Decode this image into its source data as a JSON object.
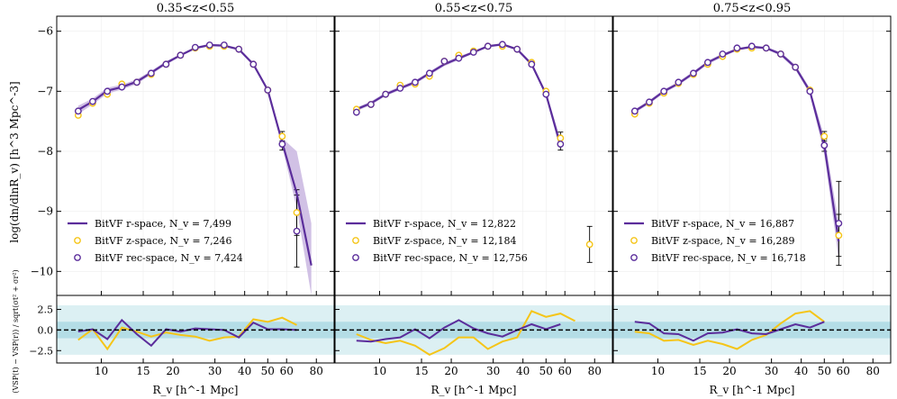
{
  "figure": {
    "ylabel_main": "log(dn/dlnR_v) [h^3 Mpc^-3]",
    "ylabel_resid": "(VSP(t) − VSP(r)) / sqrt(σt² + σr²)",
    "xlabel": "R_v [h^-1 Mpc]"
  },
  "styles": {
    "rspace_color": "#5b2d9b",
    "zspace_color": "#f5c518",
    "band_outer": "#dcf0f3",
    "band_inner": "#b4dde6"
  },
  "chart_data": [
    {
      "type": "line",
      "title": "0.35<z<0.55",
      "xscale": "log",
      "xlim": [
        6.5,
        95
      ],
      "ylim": [
        -10.4,
        -5.75
      ],
      "xticks": [
        10,
        15,
        20,
        30,
        40,
        50,
        60,
        80
      ],
      "yticks": [
        -10,
        -9,
        -8,
        -7,
        -6
      ],
      "legend": [
        "BitVF r-space, N_v = 7,499",
        "BitVF z-space, N_v = 7,246",
        "BitVF rec-space, N_v = 7,424"
      ],
      "x": [
        8.0,
        9.2,
        10.6,
        12.2,
        14.1,
        16.2,
        18.7,
        21.5,
        24.8,
        28.5,
        32.8,
        37.8,
        43.5,
        50.0,
        57.5,
        66.2,
        76.2
      ],
      "rspace": [
        -7.31,
        -7.17,
        -6.99,
        -6.93,
        -6.84,
        -6.69,
        -6.53,
        -6.4,
        -6.28,
        -6.23,
        -6.24,
        -6.3,
        -6.55,
        -6.98,
        -7.85,
        -8.7,
        -9.9
      ],
      "rspace_err_lo": [
        -7.38,
        -7.22,
        -7.04,
        -6.97,
        -6.88,
        -6.72,
        -6.56,
        -6.42,
        -6.3,
        -6.25,
        -6.26,
        -6.32,
        -6.57,
        -7.01,
        -7.92,
        -8.95,
        -10.4
      ],
      "rspace_err_hi": [
        -7.24,
        -7.12,
        -6.94,
        -6.89,
        -6.8,
        -6.66,
        -6.5,
        -6.38,
        -6.26,
        -6.21,
        -6.22,
        -6.28,
        -6.53,
        -6.95,
        -7.78,
        -8.0,
        -9.2
      ],
      "zspace": [
        -7.4,
        -7.2,
        -7.05,
        -6.88,
        -6.85,
        -6.72,
        -6.55,
        -6.4,
        -6.28,
        -6.25,
        -6.25,
        -6.3,
        -6.55,
        -6.98,
        -7.75,
        -9.02,
        null
      ],
      "zspace_err": [
        0.03,
        0.03,
        0.03,
        0.03,
        0.03,
        0.03,
        0.03,
        0.03,
        0.03,
        0.03,
        0.03,
        0.03,
        0.03,
        0.04,
        0.08,
        0.38,
        null
      ],
      "recspace": [
        -7.33,
        -7.17,
        -7.0,
        -6.93,
        -6.85,
        -6.7,
        -6.55,
        -6.4,
        -6.27,
        -6.23,
        -6.23,
        -6.3,
        -6.55,
        -6.98,
        -7.88,
        -9.33,
        null
      ],
      "recspace_err": [
        0.03,
        0.03,
        0.03,
        0.03,
        0.03,
        0.03,
        0.03,
        0.03,
        0.03,
        0.03,
        0.03,
        0.03,
        0.03,
        0.04,
        0.1,
        0.6,
        null
      ],
      "resid_x": [
        8.0,
        9.2,
        10.6,
        12.2,
        14.1,
        16.2,
        18.7,
        21.5,
        24.8,
        28.5,
        32.8,
        37.8,
        43.5,
        50.0,
        57.5,
        66.2,
        76.2
      ],
      "resid_z": [
        -1.2,
        0.1,
        -2.3,
        0.3,
        -0.2,
        -0.8,
        -0.3,
        -0.6,
        -0.8,
        -1.3,
        -0.9,
        -0.8,
        1.3,
        1.0,
        1.5,
        0.6,
        null
      ],
      "resid_rec": [
        -0.2,
        0.1,
        -1.1,
        1.2,
        -0.5,
        -1.9,
        0.1,
        -0.2,
        0.2,
        0.1,
        0.0,
        -0.9,
        0.9,
        0.1,
        0.1,
        0.0,
        null
      ]
    },
    {
      "type": "line",
      "title": "0.55<z<0.75",
      "xscale": "log",
      "xlim": [
        6.5,
        95
      ],
      "ylim": [
        -10.4,
        -5.75
      ],
      "xticks": [
        10,
        15,
        20,
        30,
        40,
        50,
        60,
        80
      ],
      "yticks": [
        -10,
        -9,
        -8,
        -7,
        -6
      ],
      "legend": [
        "BitVF r-space, N_v = 12,822",
        "BitVF z-space, N_v = 12,184",
        "BitVF rec-space, N_v = 12,756"
      ],
      "x": [
        8.0,
        9.2,
        10.6,
        12.2,
        14.1,
        16.2,
        18.7,
        21.5,
        24.8,
        28.5,
        32.8,
        37.8,
        43.5,
        50.0,
        57.5,
        66.2,
        76.2
      ],
      "rspace": [
        -7.3,
        -7.2,
        -7.05,
        -6.95,
        -6.85,
        -6.7,
        -6.55,
        -6.45,
        -6.35,
        -6.25,
        -6.22,
        -6.3,
        -6.55,
        -7.05,
        -7.9,
        null,
        null
      ],
      "rspace_err_lo": [
        -7.33,
        -7.23,
        -7.08,
        -6.98,
        -6.88,
        -6.73,
        -6.58,
        -6.48,
        -6.37,
        -6.27,
        -6.24,
        -6.32,
        -6.58,
        -7.09,
        -8.0,
        null,
        null
      ],
      "rspace_err_hi": [
        -7.27,
        -7.17,
        -7.02,
        -6.92,
        -6.82,
        -6.67,
        -6.52,
        -6.42,
        -6.33,
        -6.23,
        -6.2,
        -6.28,
        -6.52,
        -7.01,
        -7.8,
        null,
        null
      ],
      "zspace": [
        -7.3,
        -7.22,
        -7.05,
        -6.9,
        -6.88,
        -6.75,
        -6.5,
        -6.4,
        -6.33,
        -6.25,
        -6.25,
        -6.3,
        -6.52,
        -7.0,
        -7.78,
        null,
        -9.55
      ],
      "zspace_err": [
        0.03,
        0.03,
        0.03,
        0.03,
        0.03,
        0.03,
        0.03,
        0.03,
        0.03,
        0.03,
        0.03,
        0.03,
        0.03,
        0.04,
        0.1,
        null,
        0.3
      ],
      "recspace": [
        -7.35,
        -7.22,
        -7.05,
        -6.95,
        -6.85,
        -6.7,
        -6.5,
        -6.45,
        -6.35,
        -6.25,
        -6.22,
        -6.3,
        -6.55,
        -7.05,
        -7.88,
        null,
        null
      ],
      "recspace_err": [
        0.03,
        0.03,
        0.03,
        0.03,
        0.03,
        0.03,
        0.03,
        0.03,
        0.03,
        0.03,
        0.03,
        0.03,
        0.03,
        0.04,
        0.1,
        null,
        null
      ],
      "resid_x": [
        8.0,
        9.2,
        10.6,
        12.2,
        14.1,
        16.2,
        18.7,
        21.5,
        24.8,
        28.5,
        32.8,
        37.8,
        43.5,
        50.0,
        57.5,
        66.2,
        76.2
      ],
      "resid_z": [
        -0.5,
        -1.2,
        -1.6,
        -1.3,
        -1.9,
        -3.0,
        -2.2,
        -0.9,
        -0.9,
        -2.3,
        -1.4,
        -0.9,
        2.3,
        1.6,
        2.0,
        1.1,
        null
      ],
      "resid_rec": [
        -1.3,
        -1.4,
        -1.1,
        -0.9,
        0.1,
        -1.0,
        0.3,
        1.2,
        0.2,
        -0.4,
        -0.8,
        0.0,
        0.7,
        0.1,
        0.7,
        null,
        null
      ]
    },
    {
      "type": "line",
      "title": "0.75<z<0.95",
      "xscale": "log",
      "xlim": [
        6.5,
        95
      ],
      "ylim": [
        -10.4,
        -5.75
      ],
      "xticks": [
        10,
        15,
        20,
        30,
        40,
        50,
        60,
        80
      ],
      "yticks": [
        -10,
        -9,
        -8,
        -7,
        -6
      ],
      "legend": [
        "BitVF r-space, N_v = 16,887",
        "BitVF z-space, N_v = 16,289",
        "BitVF rec-space, N_v = 16,718"
      ],
      "x": [
        8.0,
        9.2,
        10.6,
        12.2,
        14.1,
        16.2,
        18.7,
        21.5,
        24.8,
        28.5,
        32.8,
        37.8,
        43.5,
        50.0,
        57.5,
        66.2,
        76.2
      ],
      "rspace": [
        -7.33,
        -7.18,
        -7.0,
        -6.87,
        -6.7,
        -6.52,
        -6.4,
        -6.3,
        -6.26,
        -6.28,
        -6.38,
        -6.6,
        -7.0,
        -7.9,
        -9.5,
        null,
        null
      ],
      "rspace_err_lo": [
        -7.36,
        -7.21,
        -7.03,
        -6.9,
        -6.73,
        -6.55,
        -6.43,
        -6.32,
        -6.28,
        -6.3,
        -6.41,
        -6.64,
        -7.05,
        -8.05,
        -9.8,
        null,
        null
      ],
      "rspace_err_hi": [
        -7.3,
        -7.15,
        -6.97,
        -6.84,
        -6.67,
        -6.49,
        -6.37,
        -6.28,
        -6.24,
        -6.26,
        -6.35,
        -6.56,
        -6.95,
        -7.75,
        -9.2,
        null,
        null
      ],
      "zspace": [
        -7.38,
        -7.2,
        -7.03,
        -6.87,
        -6.72,
        -6.55,
        -6.42,
        -6.3,
        -6.28,
        -6.28,
        -6.38,
        -6.6,
        -6.98,
        -7.75,
        -9.4,
        null,
        null
      ],
      "zspace_err": [
        0.03,
        0.03,
        0.03,
        0.03,
        0.03,
        0.03,
        0.03,
        0.03,
        0.03,
        0.03,
        0.03,
        0.03,
        0.04,
        0.08,
        0.35,
        null,
        null
      ],
      "recspace": [
        -7.33,
        -7.18,
        -7.0,
        -6.85,
        -6.7,
        -6.52,
        -6.38,
        -6.28,
        -6.25,
        -6.28,
        -6.38,
        -6.6,
        -7.0,
        -7.9,
        -9.2,
        null,
        null
      ],
      "recspace_err": [
        0.03,
        0.03,
        0.03,
        0.03,
        0.03,
        0.03,
        0.03,
        0.03,
        0.03,
        0.03,
        0.03,
        0.03,
        0.04,
        0.1,
        0.7,
        null,
        null
      ],
      "resid_x": [
        8.0,
        9.2,
        10.6,
        12.2,
        14.1,
        16.2,
        18.7,
        21.5,
        24.8,
        28.5,
        32.8,
        37.8,
        43.5,
        50.0,
        57.5,
        66.2,
        76.2
      ],
      "resid_z": [
        -0.2,
        -0.4,
        -1.3,
        -1.2,
        -1.8,
        -1.3,
        -1.7,
        -2.3,
        -1.2,
        -0.6,
        0.8,
        2.0,
        2.3,
        1.0,
        null,
        null,
        null
      ],
      "resid_rec": [
        1.0,
        0.8,
        -0.4,
        -0.5,
        -1.3,
        -0.4,
        -0.3,
        0.1,
        -0.4,
        -0.5,
        0.1,
        0.7,
        0.3,
        1.0,
        null,
        null,
        null
      ]
    }
  ]
}
